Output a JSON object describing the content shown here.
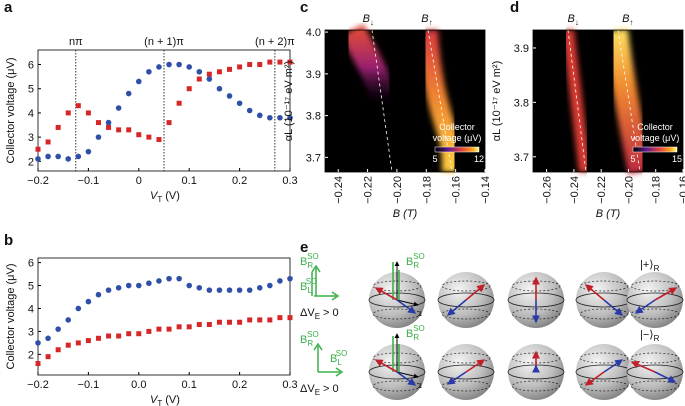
{
  "chart_data": [
    {
      "type": "scatter",
      "panel": "a",
      "ylabel": "Collector voltage (μV)",
      "xlabel": {
        "symbol": "V",
        "sub": "T",
        "unit": "(V)"
      },
      "xlim": [
        -0.2,
        0.3
      ],
      "ylim": [
        1.6,
        6.6
      ],
      "xticks": [
        {
          "value": -0.2,
          "label": "−0.2"
        },
        {
          "value": -0.1,
          "label": "−0.1"
        },
        0,
        0.1,
        0.2,
        0.3
      ],
      "yticks": [
        2,
        3,
        4,
        5,
        6
      ],
      "x": [
        -0.2,
        -0.18,
        -0.16,
        -0.14,
        -0.12,
        -0.1,
        -0.08,
        -0.06,
        -0.04,
        -0.02,
        0,
        0.02,
        0.04,
        0.06,
        0.08,
        0.1,
        0.12,
        0.14,
        0.16,
        0.18,
        0.2,
        0.22,
        0.24,
        0.26,
        0.28,
        0.3
      ],
      "series": [
        {
          "color": "#d62728",
          "marker": "square",
          "values": [
            2.5,
            2.8,
            3.4,
            4.0,
            4.3,
            4.0,
            3.6,
            3.4,
            3.3,
            3.3,
            3.1,
            3.0,
            2.9,
            3.6,
            4.4,
            5.0,
            5.4,
            5.6,
            5.7,
            5.8,
            5.9,
            6.0,
            6.0,
            6.1,
            6.1,
            6.1
          ]
        },
        {
          "color": "#3050a8",
          "marker": "circle",
          "values": [
            2.1,
            2.2,
            2.2,
            2.1,
            2.2,
            2.4,
            3.0,
            3.6,
            4.2,
            4.8,
            5.3,
            5.7,
            5.9,
            6.0,
            6.0,
            5.9,
            5.7,
            5.4,
            5.0,
            4.7,
            4.4,
            4.1,
            3.9,
            3.8,
            3.8,
            3.8
          ]
        }
      ],
      "annotations": [
        {
          "text": "nπ",
          "x": -0.125
        },
        {
          "text": "(n + 1)π",
          "x": 0.05
        },
        {
          "text": "(n + 2)π",
          "x": 0.27
        }
      ]
    },
    {
      "type": "scatter",
      "panel": "b",
      "ylabel": "Collector voltage (μV)",
      "xlabel": {
        "symbol": "V",
        "sub": "T",
        "unit": "(V)"
      },
      "xlim": [
        -0.2,
        0.3
      ],
      "ylim": [
        1.1,
        6.2
      ],
      "xticks": [
        {
          "value": -0.2,
          "label": "−0.2"
        },
        {
          "value": -0.1,
          "label": "−0.1"
        },
        {
          "value": 0,
          "label": "0.0"
        },
        0.1,
        0.2,
        0.3
      ],
      "yticks": [
        2,
        3,
        4,
        5,
        6
      ],
      "x": [
        -0.2,
        -0.18,
        -0.16,
        -0.14,
        -0.12,
        -0.1,
        -0.08,
        -0.06,
        -0.04,
        -0.02,
        0,
        0.02,
        0.04,
        0.06,
        0.08,
        0.1,
        0.12,
        0.14,
        0.16,
        0.18,
        0.2,
        0.22,
        0.24,
        0.26,
        0.28,
        0.3
      ],
      "series": [
        {
          "color": "#3050a8",
          "marker": "circle",
          "values": [
            2.5,
            2.7,
            3.1,
            3.5,
            4.0,
            4.3,
            4.6,
            4.8,
            4.9,
            5.0,
            5.0,
            5.1,
            5.2,
            5.3,
            5.3,
            5.0,
            4.9,
            4.8,
            4.8,
            4.8,
            4.8,
            4.8,
            4.9,
            5.0,
            5.2,
            5.3
          ]
        },
        {
          "color": "#d62728",
          "marker": "square",
          "values": [
            1.6,
            1.9,
            2.2,
            2.4,
            2.5,
            2.6,
            2.7,
            2.8,
            2.8,
            2.9,
            2.9,
            3.0,
            3.1,
            3.1,
            3.2,
            3.2,
            3.3,
            3.3,
            3.4,
            3.4,
            3.4,
            3.5,
            3.5,
            3.5,
            3.6,
            3.6
          ]
        }
      ]
    },
    {
      "type": "heatmap",
      "panel": "c",
      "ylabel": "αL (10⁻¹⁷ eV m²)",
      "xlabel": "B (T)",
      "xlim": [
        -0.249,
        -0.14
      ],
      "ylim": [
        3.665,
        4.005
      ],
      "xticks": [
        {
          "value": -0.24,
          "label": "−0.24"
        },
        {
          "value": -0.22,
          "label": "−0.22"
        },
        {
          "value": -0.2,
          "label": "−0.20"
        },
        {
          "value": -0.18,
          "label": "−0.18"
        },
        {
          "value": -0.16,
          "label": "−0.16"
        },
        {
          "value": -0.14,
          "label": "−0.14"
        }
      ],
      "yticks": [
        {
          "value": 4.0,
          "label": "4.0"
        },
        3.9,
        3.8,
        3.7
      ],
      "markers": [
        {
          "symbol": "B",
          "sub": "↓",
          "x": -0.22
        },
        {
          "symbol": "B",
          "sub": "↑",
          "x": -0.18
        }
      ],
      "colorbar": {
        "label": [
          "Collector",
          "voltage (μV)"
        ],
        "ticks": [
          5,
          12
        ]
      }
    },
    {
      "type": "heatmap",
      "panel": "d",
      "ylabel": "αL (10⁻¹⁷ eV m²)",
      "xlabel": "B (T)",
      "xlim": [
        -0.27,
        -0.16
      ],
      "ylim": [
        3.672,
        3.933
      ],
      "xticks": [
        {
          "value": -0.26,
          "label": "−0.26"
        },
        {
          "value": -0.24,
          "label": "−0.24"
        },
        {
          "value": -0.22,
          "label": "−0.22"
        },
        {
          "value": -0.2,
          "label": "−0.20"
        },
        {
          "value": -0.18,
          "label": "−0.18"
        },
        {
          "value": -0.16,
          "label": "−0.16"
        }
      ],
      "yticks": [
        3.9,
        3.8,
        3.7
      ],
      "markers": [
        {
          "symbol": "B",
          "sub": "↓",
          "x": -0.241
        },
        {
          "symbol": "B",
          "sub": "↑",
          "x": -0.201
        }
      ],
      "colorbar": {
        "label": [
          "Collector",
          "voltage (μV)"
        ],
        "ticks": [
          5,
          15
        ]
      }
    }
  ],
  "diagram": {
    "panel": "e",
    "field_r": {
      "symbol": "B",
      "sub": "R",
      "sup": "SO"
    },
    "field_l": {
      "symbol": "B",
      "sub": "L",
      "sup": "SO"
    },
    "condition": {
      "pre": "ΔV",
      "sub": "E",
      "post": "> 0"
    },
    "state_plus": {
      "ket": "|+⟩",
      "sub": "R"
    },
    "state_minus": {
      "ket": "|−⟩",
      "sub": "R"
    },
    "axis_z": "z"
  }
}
